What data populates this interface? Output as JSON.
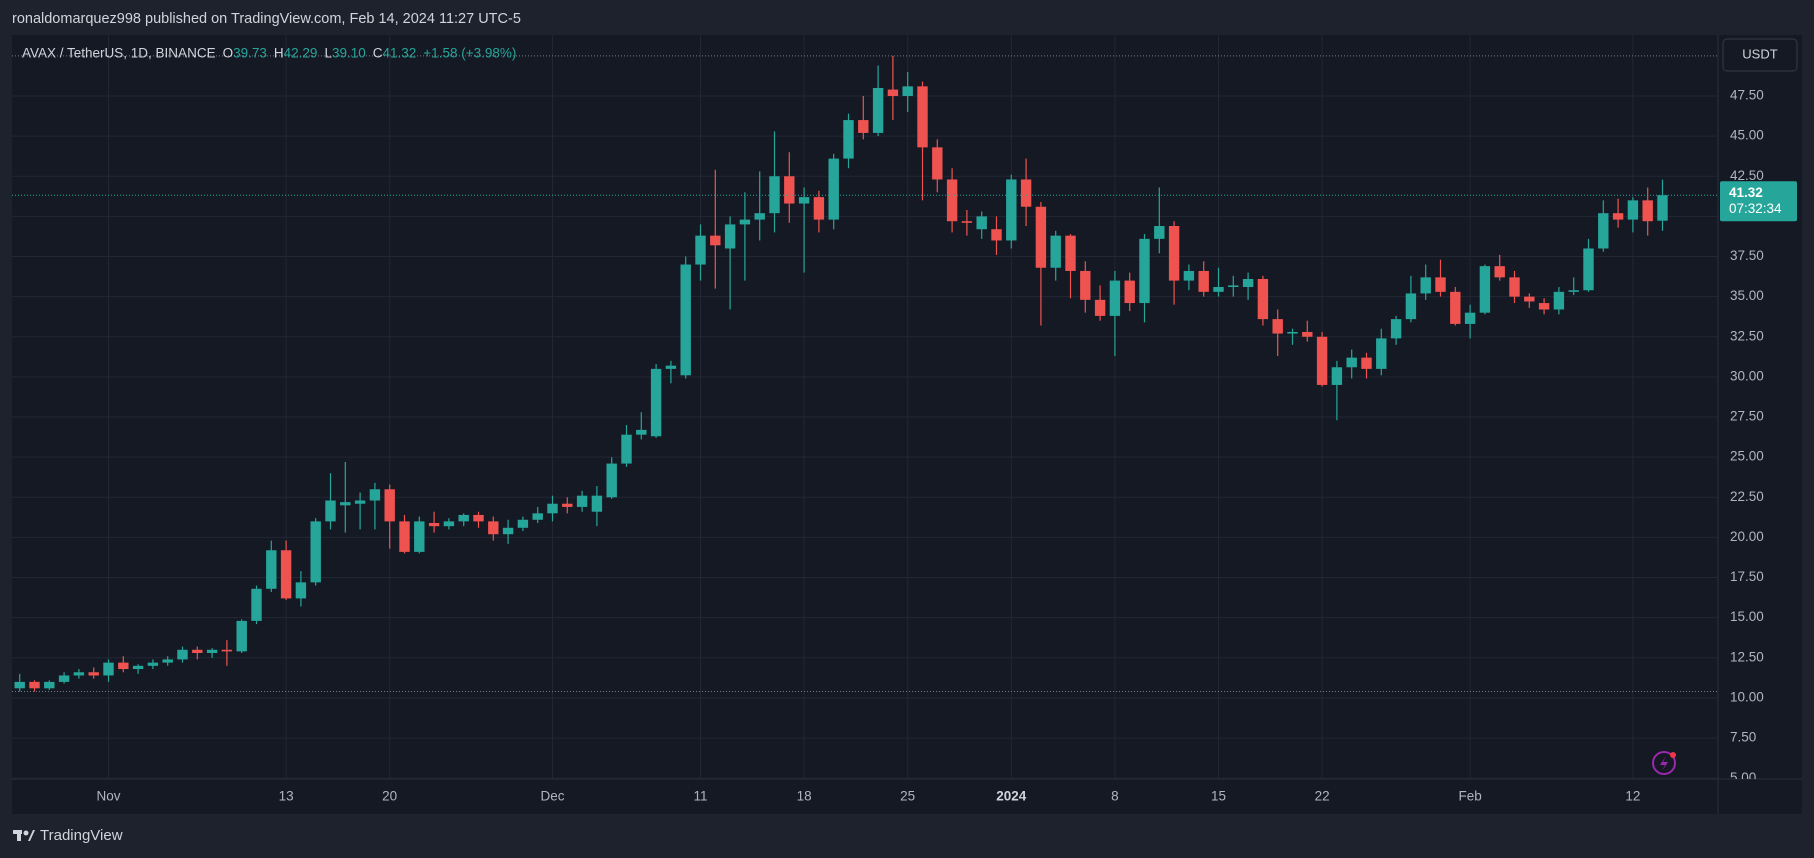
{
  "header": {
    "publisher": "ronaldomarquez998 published on TradingView.com, Feb 14, 2024 11:27 UTC-5"
  },
  "chart_data": {
    "type": "candlestick",
    "title": "AVAX / TetherUS, 1D, BINANCE",
    "legend": [
      {
        "key": "O",
        "value": "39.73"
      },
      {
        "key": "H",
        "value": "42.29"
      },
      {
        "key": "L",
        "value": "39.10"
      },
      {
        "key": "C",
        "value": "41.32"
      }
    ],
    "change": "+1.58 (+3.98%)",
    "currency": "USDT",
    "last_price": {
      "value": 41.32,
      "countdown": "07:32:34"
    },
    "categories": [
      null,
      null,
      null,
      null,
      null,
      null,
      "Nov",
      null,
      null,
      null,
      null,
      null,
      null,
      null,
      null,
      null,
      null,
      null,
      "13",
      null,
      null,
      null,
      null,
      null,
      null,
      "20",
      null,
      null,
      null,
      null,
      null,
      null,
      null,
      null,
      null,
      null,
      "Dec",
      null,
      null,
      null,
      null,
      null,
      null,
      null,
      null,
      null,
      "11",
      null,
      null,
      null,
      null,
      null,
      null,
      "18",
      null,
      null,
      null,
      null,
      null,
      null,
      "25",
      null,
      null,
      null,
      null,
      null,
      null,
      "2024",
      null,
      null,
      null,
      null,
      null,
      null,
      "8",
      null,
      null,
      null,
      null,
      null,
      null,
      "15",
      null,
      null,
      null,
      null,
      null,
      null,
      "22",
      null,
      null,
      null,
      null,
      null,
      null,
      null,
      null,
      null,
      "Feb",
      null,
      null,
      null,
      null,
      null,
      null,
      null,
      null,
      null,
      null,
      "12",
      null,
      null
    ],
    "open": [
      10.6,
      11.0,
      10.6,
      11.0,
      11.4,
      11.6,
      11.4,
      12.2,
      11.8,
      12.0,
      12.2,
      12.4,
      13.0,
      12.8,
      13.0,
      12.9,
      14.8,
      16.8,
      19.2,
      16.2,
      17.2,
      21.0,
      22.0,
      22.1,
      22.3,
      23.0,
      21.0,
      19.1,
      20.9,
      20.7,
      21.0,
      21.4,
      21.0,
      20.2,
      20.6,
      21.1,
      21.5,
      22.1,
      21.9,
      21.6,
      22.5,
      24.6,
      26.4,
      26.3,
      30.5,
      30.1,
      37.0,
      38.8,
      38.0,
      39.5,
      39.8,
      40.2,
      42.5,
      40.8,
      41.2,
      39.8,
      43.6,
      46.0,
      45.2,
      47.9,
      47.5,
      48.1,
      44.3,
      42.3,
      39.7,
      39.2,
      39.2,
      38.5,
      42.3,
      40.6,
      36.8,
      38.8,
      36.6,
      34.8,
      33.8,
      36.0,
      34.6,
      38.6,
      39.4,
      36.0,
      36.6,
      35.3,
      35.6,
      35.6,
      36.1,
      33.6,
      32.7,
      32.8,
      32.5,
      29.5,
      30.6,
      31.2,
      30.5,
      32.4,
      33.6,
      35.2,
      36.2,
      35.3,
      33.3,
      34.0,
      36.9,
      36.2,
      35.0,
      34.6,
      34.2,
      35.3,
      35.4,
      38.0,
      40.2,
      39.8,
      41.0,
      39.73
    ],
    "high": [
      11.5,
      11.1,
      11.1,
      11.6,
      11.8,
      11.9,
      12.4,
      12.6,
      12.1,
      12.4,
      12.6,
      13.2,
      13.2,
      13.1,
      13.6,
      14.9,
      17.0,
      19.8,
      19.8,
      17.9,
      21.2,
      24.0,
      24.7,
      22.8,
      23.4,
      23.3,
      21.4,
      21.3,
      21.6,
      21.2,
      21.5,
      21.6,
      21.3,
      21.1,
      21.3,
      21.9,
      22.6,
      22.5,
      22.9,
      23.2,
      25.0,
      27.0,
      27.8,
      30.8,
      31.0,
      37.5,
      39.5,
      42.9,
      40.0,
      41.5,
      42.8,
      45.3,
      44.0,
      41.8,
      41.6,
      43.9,
      46.4,
      47.5,
      49.4,
      50.0,
      49.0,
      48.4,
      44.8,
      43.0,
      40.4,
      40.3,
      40.0,
      42.6,
      43.6,
      40.9,
      39.1,
      38.9,
      37.2,
      35.7,
      36.6,
      36.5,
      38.9,
      41.8,
      39.7,
      37.0,
      37.2,
      36.8,
      36.3,
      36.5,
      36.3,
      34.2,
      33.0,
      33.5,
      32.8,
      31.0,
      31.7,
      31.5,
      33.0,
      33.8,
      36.3,
      37.0,
      37.3,
      35.6,
      34.5,
      37.0,
      37.6,
      36.6,
      35.2,
      34.9,
      35.6,
      36.2,
      38.6,
      41.0,
      41.1,
      41.2,
      41.8,
      42.29
    ],
    "low": [
      10.4,
      10.4,
      10.5,
      10.9,
      11.2,
      11.2,
      11.0,
      11.6,
      11.5,
      11.8,
      12.0,
      12.2,
      12.4,
      12.5,
      12.0,
      12.8,
      14.6,
      16.6,
      16.1,
      15.7,
      17.0,
      20.5,
      20.3,
      20.5,
      20.5,
      19.3,
      19.0,
      19.0,
      20.3,
      20.5,
      20.7,
      20.6,
      19.8,
      19.6,
      20.4,
      20.9,
      21.0,
      21.5,
      21.6,
      20.7,
      22.4,
      24.4,
      26.1,
      26.2,
      29.6,
      29.9,
      36.0,
      35.5,
      34.2,
      36.0,
      38.5,
      39.0,
      39.6,
      36.5,
      39.0,
      39.2,
      43.0,
      44.8,
      45.0,
      46.0,
      46.5,
      41.0,
      41.5,
      39.0,
      38.8,
      38.6,
      37.6,
      38.0,
      39.4,
      33.2,
      36.0,
      34.9,
      34.0,
      33.5,
      31.3,
      34.1,
      33.4,
      37.7,
      34.5,
      35.4,
      35.0,
      35.0,
      35.0,
      34.8,
      33.2,
      31.3,
      32.0,
      32.2,
      29.4,
      27.3,
      29.9,
      29.9,
      30.1,
      32.0,
      33.4,
      34.8,
      35.0,
      33.2,
      32.4,
      33.9,
      36.0,
      34.6,
      34.3,
      33.9,
      33.9,
      35.1,
      35.3,
      37.8,
      39.3,
      39.0,
      38.8,
      39.1
    ],
    "close": [
      11.0,
      10.6,
      11.0,
      11.4,
      11.6,
      11.4,
      12.2,
      11.8,
      12.0,
      12.2,
      12.4,
      13.0,
      12.8,
      13.0,
      12.9,
      14.8,
      16.8,
      19.2,
      16.2,
      17.2,
      21.0,
      22.3,
      22.2,
      22.3,
      23.0,
      21.0,
      19.1,
      21.0,
      20.7,
      21.0,
      21.4,
      21.0,
      20.2,
      20.6,
      21.1,
      21.5,
      22.1,
      21.9,
      22.6,
      22.6,
      24.6,
      26.4,
      26.7,
      30.5,
      30.7,
      37.0,
      38.8,
      38.2,
      39.5,
      39.8,
      40.2,
      42.5,
      40.8,
      41.2,
      39.8,
      43.6,
      46.0,
      45.2,
      48.0,
      47.5,
      48.1,
      44.3,
      42.3,
      39.7,
      39.6,
      40.0,
      38.5,
      42.3,
      40.6,
      36.8,
      38.8,
      36.6,
      34.8,
      33.8,
      36.0,
      34.6,
      38.6,
      39.4,
      36.0,
      36.6,
      35.3,
      35.6,
      35.7,
      36.1,
      33.6,
      32.7,
      32.8,
      32.5,
      29.5,
      30.6,
      31.2,
      30.5,
      32.4,
      33.6,
      35.2,
      36.2,
      35.3,
      33.3,
      34.0,
      36.9,
      36.2,
      35.0,
      34.7,
      34.2,
      35.3,
      35.4,
      38.0,
      40.2,
      39.8,
      41.0,
      39.7,
      41.32
    ],
    "colors": {
      "up": "#26a69a",
      "down": "#ef5350"
    },
    "ylim": [
      4.95,
      51.3
    ],
    "yticks": [
      {
        "value": 5,
        "label": "5.00"
      },
      {
        "value": 7.5,
        "label": "7.50"
      },
      {
        "value": 10,
        "label": "10.00"
      },
      {
        "value": 12.5,
        "label": "12.50"
      },
      {
        "value": 15,
        "label": "15.00"
      },
      {
        "value": 17.5,
        "label": "17.50"
      },
      {
        "value": 20,
        "label": "20.00"
      },
      {
        "value": 22.5,
        "label": "22.50"
      },
      {
        "value": 25,
        "label": "25.00"
      },
      {
        "value": 27.5,
        "label": "27.50"
      },
      {
        "value": 30,
        "label": "30.00"
      },
      {
        "value": 32.5,
        "label": "32.50"
      },
      {
        "value": 35,
        "label": "35.00"
      },
      {
        "value": 37.5,
        "label": "37.50"
      },
      {
        "value": 40,
        "label": "40.00"
      },
      {
        "value": 42.5,
        "label": "42.50"
      },
      {
        "value": 45,
        "label": "45.00"
      },
      {
        "value": 47.5,
        "label": "47.50"
      }
    ],
    "grid": true
  },
  "footer": {
    "brand": "TradingView"
  }
}
